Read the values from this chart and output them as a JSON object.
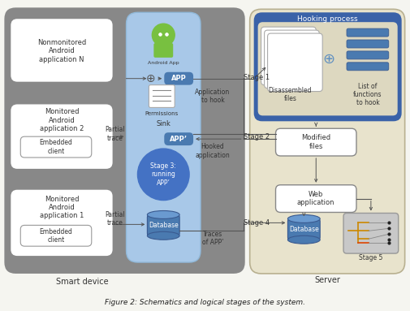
{
  "title": "Figure 2: Schematics and logical stages of the system.",
  "bg": "#f0ede0",
  "smart_device_bg": "#888888",
  "smart_device_label": "Smart device",
  "server_bg": "#e8e3cc",
  "server_border": "#b8b090",
  "server_label": "Server",
  "sink_bg": "#a8c8e8",
  "sink_bg2": "#c8dff0",
  "hooking_bg": "#3a62a8",
  "hooking_inner_bg": "#ddd8c0",
  "hooking_label": "Hooking process",
  "app_btn_color": "#4a7ab0",
  "stage3_circle_color": "#4472c4",
  "db_color": "#4a7ab0",
  "db_top_color": "#6a9ad0",
  "arrow_color": "#555555",
  "stage5_bg": "#c8c8c8",
  "stage5_border": "#999999",
  "white": "#ffffff",
  "light_gray_border": "#aaaaaa",
  "android_green": "#78c040"
}
